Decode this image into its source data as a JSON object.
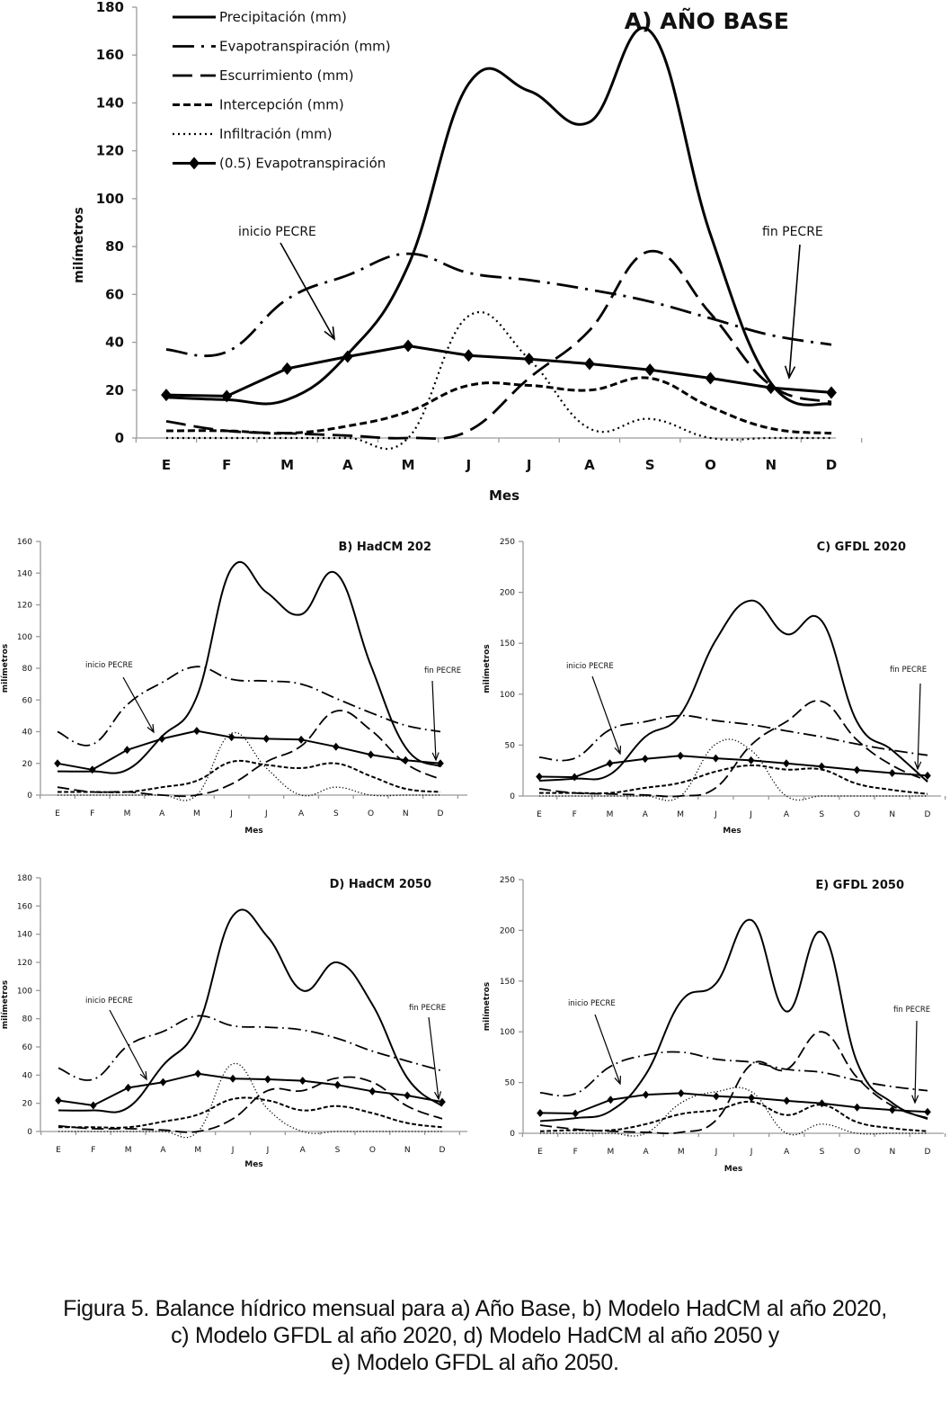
{
  "figure": {
    "caption_lines": [
      "Figura 5. Balance hídrico mensual para a) Año Base, b) Modelo HadCM al año 2020,",
      "c) Modelo GFDL al año 2020, d) Modelo HadCM al año 2050 y",
      "e) Modelo GFDL al año 2050."
    ]
  },
  "legend": [
    {
      "key": "precip",
      "label": "Precipitación (mm)"
    },
    {
      "key": "evapo",
      "label": "Evapotranspiración (mm)"
    },
    {
      "key": "escurr",
      "label": "Escurrimiento (mm)"
    },
    {
      "key": "interc",
      "label": "Intercepción (mm)"
    },
    {
      "key": "infil",
      "label": "Infiltración (mm)"
    },
    {
      "key": "half_evapo",
      "label": "(0.5) Evapotranspiración"
    }
  ],
  "chart_data": [
    {
      "id": "A",
      "type": "line",
      "title": "A) AÑO BASE",
      "xlabel": "Mes",
      "ylabel": "milímetros",
      "categories": [
        "E",
        "F",
        "M",
        "A",
        "M",
        "J",
        "J",
        "A",
        "S",
        "O",
        "N",
        "D"
      ],
      "ylim": [
        0,
        180
      ],
      "yticks": [
        0,
        20,
        40,
        60,
        80,
        100,
        120,
        140,
        160,
        180
      ],
      "legend": "top-left",
      "annotations": [
        {
          "text": "inicio PECRE",
          "month_index": 3
        },
        {
          "text": "fin PECRE",
          "month_index": 11
        }
      ],
      "series": [
        {
          "name": "Precipitación (mm)",
          "key": "precip",
          "values": [
            17,
            16,
            16,
            35,
            72,
            148,
            145,
            132,
            170,
            85,
            23,
            14
          ]
        },
        {
          "name": "Evapotranspiración (mm)",
          "key": "evapo",
          "values": [
            37,
            36,
            58,
            68,
            77,
            69,
            66,
            62,
            57,
            50,
            43,
            39
          ]
        },
        {
          "name": "Escurrimiento (mm)",
          "key": "escurr",
          "values": [
            7,
            3,
            2,
            1,
            0,
            3,
            25,
            45,
            78,
            52,
            22,
            15
          ]
        },
        {
          "name": "Intercepción (mm)",
          "key": "interc",
          "values": [
            3,
            3,
            2,
            5,
            11,
            22,
            22,
            20,
            25,
            13,
            4,
            2
          ]
        },
        {
          "name": "Infiltración (mm)",
          "key": "infil",
          "values": [
            0,
            0,
            0,
            0,
            0,
            51,
            33,
            4,
            8,
            0,
            0,
            0
          ]
        },
        {
          "name": "(0.5) Evapotranspiración",
          "key": "half_evapo",
          "values": [
            18,
            17.5,
            29,
            34,
            38.5,
            34.5,
            33,
            31,
            28.5,
            25,
            21,
            19
          ]
        }
      ]
    },
    {
      "id": "B",
      "type": "line",
      "title": "B) HadCM 202",
      "xlabel": "Mes",
      "ylabel": "milímetros",
      "categories": [
        "E",
        "F",
        "M",
        "A",
        "M",
        "J",
        "J",
        "A",
        "S",
        "O",
        "N",
        "D"
      ],
      "ylim": [
        0,
        160
      ],
      "yticks": [
        0,
        20,
        40,
        60,
        80,
        100,
        120,
        140,
        160
      ],
      "annotations": [
        {
          "text": "inicio PECRE",
          "month_index": 3
        },
        {
          "text": "fin PECRE",
          "month_index": 11
        }
      ],
      "series": [
        {
          "name": "Precipitación (mm)",
          "key": "precip",
          "values": [
            15,
            15,
            16,
            37,
            62,
            143,
            128,
            114,
            140,
            82,
            30,
            18
          ]
        },
        {
          "name": "Evapotranspiración (mm)",
          "key": "evapo",
          "values": [
            40,
            32,
            57,
            71,
            81,
            73,
            72,
            70,
            61,
            52,
            44,
            40
          ]
        },
        {
          "name": "Escurrimiento (mm)",
          "key": "escurr",
          "values": [
            5,
            2,
            2,
            0,
            0,
            7,
            21,
            31,
            53,
            41,
            20,
            10
          ]
        },
        {
          "name": "Intercepción (mm)",
          "key": "interc",
          "values": [
            2,
            2,
            2,
            5,
            9,
            21,
            19,
            17,
            20,
            12,
            4,
            2
          ]
        },
        {
          "name": "Infiltración (mm)",
          "key": "infil",
          "values": [
            0,
            0,
            0,
            0,
            0,
            39,
            17,
            0,
            5,
            0,
            0,
            0
          ]
        },
        {
          "name": "(0.5) Evapotranspiración",
          "key": "half_evapo",
          "values": [
            20,
            16,
            28.5,
            35.5,
            40.5,
            36.5,
            35.5,
            35,
            30.5,
            25.5,
            22,
            20
          ]
        }
      ]
    },
    {
      "id": "C",
      "type": "line",
      "title": "C) GFDL 2020",
      "xlabel": "Mes",
      "ylabel": "milímetros",
      "categories": [
        "E",
        "F",
        "M",
        "A",
        "M",
        "J",
        "J",
        "A",
        "S",
        "O",
        "N",
        "D"
      ],
      "ylim": [
        0,
        250
      ],
      "yticks": [
        0,
        50,
        100,
        150,
        200,
        250
      ],
      "annotations": [
        {
          "text": "inicio PECRE",
          "month_index": 2
        },
        {
          "text": "fin PECRE",
          "month_index": 11
        }
      ],
      "series": [
        {
          "name": "Precipitación (mm)",
          "key": "precip",
          "values": [
            15,
            17,
            21,
            58,
            80,
            153,
            192,
            159,
            172,
            73,
            45,
            14
          ]
        },
        {
          "name": "Evapotranspiración (mm)",
          "key": "evapo",
          "values": [
            38,
            37,
            65,
            73,
            79,
            74,
            70,
            64,
            58,
            51,
            45,
            40
          ]
        },
        {
          "name": "Escurrimiento (mm)",
          "key": "escurr",
          "values": [
            7,
            3,
            2,
            1,
            0,
            8,
            50,
            73,
            93,
            55,
            30,
            15
          ]
        },
        {
          "name": "Intercepción (mm)",
          "key": "interc",
          "values": [
            3,
            3,
            3,
            8,
            13,
            24,
            30,
            26,
            26,
            12,
            6,
            2
          ]
        },
        {
          "name": "Infiltración (mm)",
          "key": "infil",
          "values": [
            0,
            0,
            0,
            0,
            0,
            51,
            45,
            0,
            0,
            0,
            0,
            0
          ]
        },
        {
          "name": "(0.5) Evapotranspiración",
          "key": "half_evapo",
          "values": [
            19,
            18.5,
            32,
            36.5,
            39.5,
            37,
            35,
            32,
            29,
            25.5,
            22.5,
            20
          ]
        }
      ]
    },
    {
      "id": "D",
      "type": "line",
      "title": "D) HadCM 2050",
      "xlabel": "Mes",
      "ylabel": "milímetros",
      "categories": [
        "E",
        "F",
        "M",
        "A",
        "M",
        "J",
        "J",
        "A",
        "S",
        "O",
        "N",
        "D"
      ],
      "ylim": [
        0,
        180
      ],
      "yticks": [
        0,
        20,
        40,
        60,
        80,
        100,
        120,
        140,
        160,
        180
      ],
      "annotations": [
        {
          "text": "inicio PECRE",
          "month_index": 3
        },
        {
          "text": "fin PECRE",
          "month_index": 11
        }
      ],
      "series": [
        {
          "name": "Precipitación (mm)",
          "key": "precip",
          "values": [
            15,
            15,
            17,
            47,
            75,
            153,
            138,
            100,
            120,
            90,
            38,
            18
          ]
        },
        {
          "name": "Evapotranspiración (mm)",
          "key": "evapo",
          "values": [
            45,
            37,
            61,
            71,
            82,
            75,
            74,
            72,
            66,
            57,
            50,
            43
          ]
        },
        {
          "name": "Escurrimiento (mm)",
          "key": "escurr",
          "values": [
            4,
            2,
            2,
            1,
            0,
            9,
            29,
            29,
            38,
            35,
            18,
            9
          ]
        },
        {
          "name": "Intercepción (mm)",
          "key": "interc",
          "values": [
            3,
            3,
            3,
            7,
            12,
            23,
            22,
            15,
            18,
            13,
            6,
            3
          ]
        },
        {
          "name": "Infiltración (mm)",
          "key": "infil",
          "values": [
            0,
            0,
            0,
            0,
            0,
            48,
            16,
            0,
            0,
            0,
            0,
            0
          ]
        },
        {
          "name": "(0.5) Evapotranspiración",
          "key": "half_evapo",
          "values": [
            22,
            18.5,
            31,
            35,
            41,
            37.5,
            37,
            36,
            33,
            28.5,
            25.5,
            21
          ]
        }
      ]
    },
    {
      "id": "E",
      "type": "line",
      "title": "E) GFDL 2050",
      "xlabel": "Mes",
      "ylabel": "milímetros",
      "categories": [
        "E",
        "F",
        "M",
        "A",
        "M",
        "J",
        "J",
        "A",
        "S",
        "O",
        "N",
        "D"
      ],
      "ylim": [
        0,
        250
      ],
      "yticks": [
        0,
        50,
        100,
        150,
        200,
        250
      ],
      "annotations": [
        {
          "text": "inicio PECRE",
          "month_index": 2
        },
        {
          "text": "fin PECRE",
          "month_index": 11
        }
      ],
      "series": [
        {
          "name": "Precipitación (mm)",
          "key": "precip",
          "values": [
            12,
            15,
            22,
            58,
            130,
            148,
            210,
            120,
            198,
            70,
            30,
            14
          ]
        },
        {
          "name": "Evapotranspiración (mm)",
          "key": "evapo",
          "values": [
            40,
            39,
            66,
            77,
            80,
            73,
            70,
            63,
            60,
            52,
            46,
            42
          ]
        },
        {
          "name": "Escurrimiento (mm)",
          "key": "escurr",
          "values": [
            8,
            4,
            2,
            1,
            1,
            13,
            68,
            63,
            100,
            55,
            27,
            15
          ]
        },
        {
          "name": "Intercepción (mm)",
          "key": "interc",
          "values": [
            2,
            3,
            3,
            9,
            19,
            23,
            31,
            18,
            28,
            11,
            5,
            2
          ]
        },
        {
          "name": "Infiltración (mm)",
          "key": "infil",
          "values": [
            0,
            0,
            0,
            0,
            30,
            41,
            41,
            0,
            9,
            0,
            0,
            0
          ]
        },
        {
          "name": "(0.5) Evapotranspiración",
          "key": "half_evapo",
          "values": [
            20,
            19.5,
            33,
            38,
            39.5,
            36.5,
            35,
            32,
            29.5,
            25.5,
            23,
            21
          ]
        }
      ]
    }
  ]
}
